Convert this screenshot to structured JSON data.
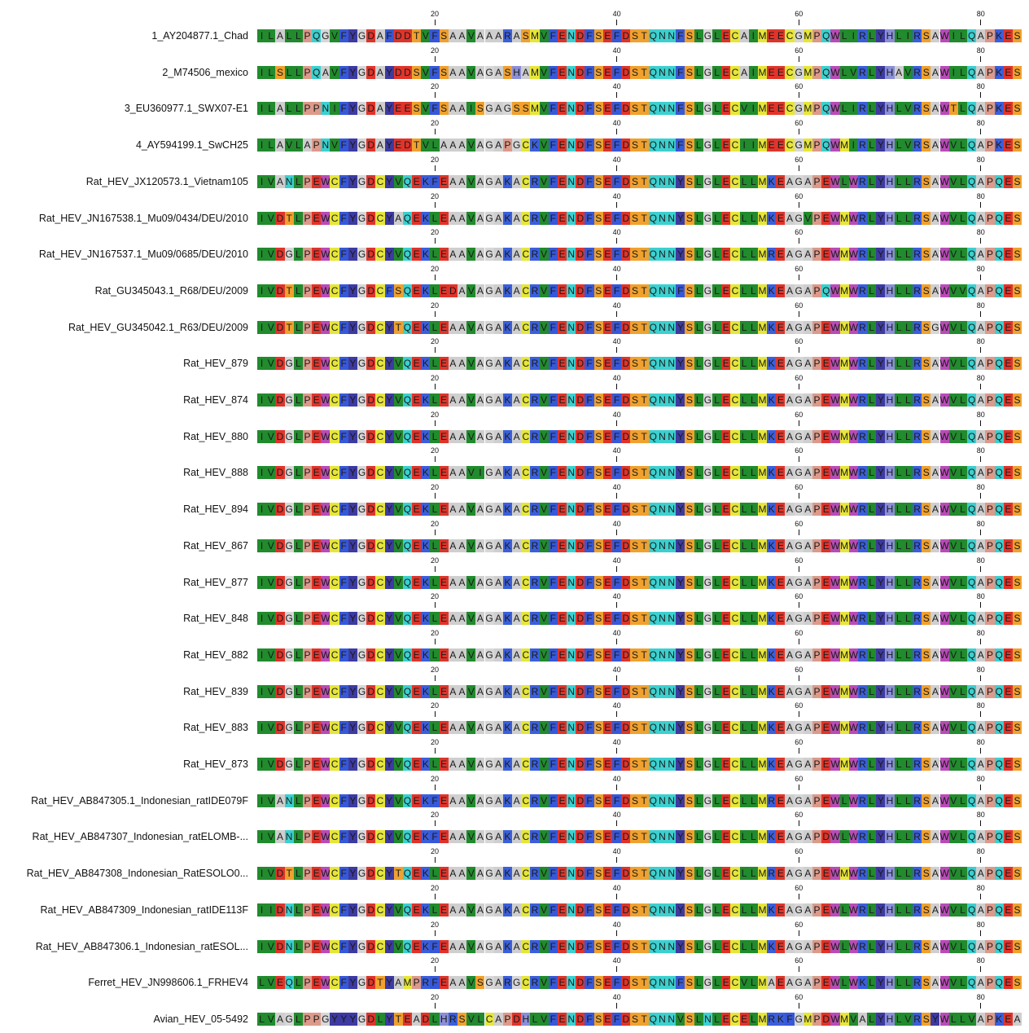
{
  "alignment": {
    "ticks": [
      20,
      40,
      60,
      80
    ],
    "sequences": [
      {
        "name": "1_AY204877.1_Chad",
        "seq": "ILALLPQGVFYGDAFDDTVFSAAVAAARASMVFENDFSEFDSTQNNFSLGLECAIMEECGMPQWLIRLYHLIRSAWILQAPKES"
      },
      {
        "name": "2_M74506_mexico",
        "seq": "ILSLLPQAVFYGDAYDDSVFSAAVAGASHAMVFENDFSEFDSTQNNFSLGLECAIMEECGMPQWLVRLYHAVRSAWILQAPKES"
      },
      {
        "name": "3_EU360977.1_SWX07-E1",
        "seq": "ILALLPPNIFYGDAYEESVFSAAISGAGSSMVFENDFSEFDSTQNNFSLGLECVIMEECGMPQWLIRLYHLVRSAWTLQAPKES"
      },
      {
        "name": "4_AY594199.1_SwCH25",
        "seq": "ILAVLAPNVFYGDAYEDTVLAAAVAGAPGCKVFENDFSEFDSTQNNFSLGLECIIMEECGMPQWMIRLYHLVRSAWVLQAPKES"
      },
      {
        "name": "Rat_HEV_JX120573.1_Vietnam105",
        "seq": "IVANLPEWCFYGDCYVQEKFEAAVAGAKACRVFENDFSEFDSTQNNYSLGLECLLMKEAGAPEWLWRLYHLLRSAWVLQAPQES"
      },
      {
        "name": "Rat_HEV_JN167538.1_Mu09/0434/DEU/2010",
        "seq": "IVDTLPEWCFYGDCYAQEKLEAAVAGAKACRVFENDFSEFDSTQNNYSLGLECLLMKEAGVPEWMWRLYHLLRSAWVLQAPQES"
      },
      {
        "name": "Rat_HEV_JN167537.1_Mu09/0685/DEU/2010",
        "seq": "IVDGLPEWCFYGDCYVQEKLEAAVAGAKACRVFENDFSEFDSTQNNYSLGLECLLMREAGAPEWMWRLYHLLRSAWVLQAPQES"
      },
      {
        "name": "Rat_GU345043.1_R68/DEU/2009",
        "seq": "IVDTLPEWCFYGDCFSQEKLEDAVAGAKACRVFENDFSEFDSTQNNFSLGLECLLMKEAGAPQWMWRLYHLLRSAWVVQAPQES"
      },
      {
        "name": "Rat_HEV_GU345042.1_R63/DEU/2009",
        "seq": "IVDTLPEWCFYGDCYTQEKLEAAVAGAKACRVFENDFSEFDSTQNNYSLGLECLLMKEAGAPEWMWRLYHLLRSGWVLQAPQES"
      },
      {
        "name": "Rat_HEV_879",
        "seq": "IVDGLPEWCFYGDCYVQEKLEAAVAGAKACRVFENDFSEFDSTQNNYSLGLECLLMKEAGAPEWMWRLYHLLRSAWVLQAPQES"
      },
      {
        "name": "Rat_HEV_874",
        "seq": "IVDGLPEWCFYGDCYVQEKLEAAVAGAKACRVFENDFSEFDSTQNNYSLGLECLLMKEAGAPEWMWRLYHLLRSAWVLQAPQES"
      },
      {
        "name": "Rat_HEV_880",
        "seq": "IVDGLPEWCFYGDCYVQEKLEAAVAGAKACRVFENDFSEFDSTQNNYSLGLECLLMKEAGAPEWMWRLYHLLRSAWVLQAPQES"
      },
      {
        "name": "Rat_HEV_888",
        "seq": "IVDGLPEWCFYGDCYVQEKLEAAVIGAKACRVFENDFSEFDSTQNNYSLGLECLLMKEAGAPEWMWRLYHLLRSAWVLQAPQES"
      },
      {
        "name": "Rat_HEV_894",
        "seq": "IVDGLPEWCFYGDCYVQEKLEAAVAGAKACRVFENDFSEFDSTQNNYSLGLECLLMKEAGAPEWMWRLYHLLRSAWVLQAPQES"
      },
      {
        "name": "Rat_HEV_867",
        "seq": "IVDGLPEWCFYGDCYVQEKLEAAVAGAKACRVFENDFSEFDSTQNNYSLGLECLLMKEAGAPEWMWRLYHLLRSAWVLQAPQES"
      },
      {
        "name": "Rat_HEV_877",
        "seq": "IVDGLPEWCFYGDCYVQEKLEAAVAGAKACRVFENDFSEFDSTQNNYSLGLECLLMKEAGAPEWMWRLYHLLRSAWVLQAPQES"
      },
      {
        "name": "Rat_HEV_848",
        "seq": "IVDGLPEWCFYGDCYVQEKLEAAVAGAKACRVFENDFSEFDSTQNNYSLGLECLLMKEAGAPEWMWRLYHLLRSAWVLQAPQES"
      },
      {
        "name": "Rat_HEV_882",
        "seq": "IVDGLPEWCFYGDCYVQEKLEAAVAGAKACRVFENDFSEFDSTQNNYSLGLECLLMKEAGAPEWMWRLYHLLRSAWVLQAPQES"
      },
      {
        "name": "Rat_HEV_839",
        "seq": "IVDGLPEWCFYGDCYVQEKLEAAVAGAKACRVFENDFSEFDSTQNNYSLGLECLLMKEAGAPEWMWRLYHLLRSAWVLQAPQES"
      },
      {
        "name": "Rat_HEV_883",
        "seq": "IVDGLPEWCFYGDCYVQEKLEAAVAGAKACRVFENDFSEFDSTQNNYSLGLECLLMKEAGAPEWMWRLYHLLRSAWVLQAPQES"
      },
      {
        "name": "Rat_HEV_873",
        "seq": "IVDGLPEWCFYGDCYVQEKLEAAVAGAKACRVFENDFSEFDSTQNNYSLGLECLLMKEAGAPEWMWRLYHLLRSAWVLQAPQES"
      },
      {
        "name": "Rat_HEV_AB847305.1_Indonesian_ratIDE079F",
        "seq": "IVANLPEWCFYGDCYVQEKFEAAVAGAKACRVFENDFSEFDSTQNNYSLGLECLLMREAGAPEWLWRLYHLLRSAWVLQAPQES"
      },
      {
        "name": "Rat_HEV_AB847307_Indonesian_ratELOMB-...",
        "seq": "IVANLPEWCFYGDCYVQEKFEAAVAGAKACRVFENDFSEFDSTQNNYSLGLECLLMKEAGAPDWLWRLYHLLRSAWVLQAPQES"
      },
      {
        "name": "Rat_HEV_AB847308_Indonesian_RatESOLO0...",
        "seq": "IVDTLPEWCFYGDCYTQEKLEAAVAGAKACRVFENDFSEFDSTQNNYSLGLECLLMREAGAPEWMWRLYHLLRSAWVLQAPQES"
      },
      {
        "name": "Rat_HEV_AB847309_Indonesian_ratIDE113F",
        "seq": "IIDNLPEWCFYGDCYVQEKLEAAVAGAKACRVFENDFSEFDSTQNNYSLGLECLLMKEAGAPEWLWRLYHLLRSAWVLQAPQES"
      },
      {
        "name": "Rat_HEV_AB847306.1_Indonesian_ratESOL...",
        "seq": "IVDNLPEWCFYGDCYVQEKFEAAVAGAKACRVFENDFSEFDSTQNNYSLGLECLLMKEAGAPEWLWRLYHLLRSAWVLQAPQES"
      },
      {
        "name": "Ferret_HEV_JN998606.1_FRHEV4",
        "seq": "LVEQLPEWCFYGDTYAMPRFEAAVSGARGCRVFENDFSEFDSTQNNFSLGLECVLMAEAGAPEWLWKLYHLLRSAWVLQAPQES"
      },
      {
        "name": "Avian_HEV_05-5492",
        "seq": "LVAGLPPGYYYGDLYTEADLHRSVLCAPDHLVFENDFSEFDSTQNNVSLNLECELMRKFGMPDWMVALYHLVRSYWLLVAPKEA"
      }
    ],
    "colors": {
      "A": "#cfcfcf",
      "B": "#d3d3d3",
      "C": "#e6e63a",
      "D": "#e0342a",
      "E": "#e0342a",
      "F": "#3758d8",
      "G": "#d7d7d7",
      "H": "#8b8fd6",
      "I": "#218b2d",
      "K": "#3b5fdc",
      "L": "#218b2d",
      "M": "#e6e63a",
      "N": "#3cd0cf",
      "P": "#dd9a8a",
      "Q": "#3cd0cf",
      "R": "#3b5fdc",
      "S": "#f0a12e",
      "T": "#f0a12e",
      "V": "#218b2d",
      "W": "#b84cb7",
      "Y": "#3d3aa1",
      "X": "#ffffff",
      "-": "#ffffff"
    }
  }
}
